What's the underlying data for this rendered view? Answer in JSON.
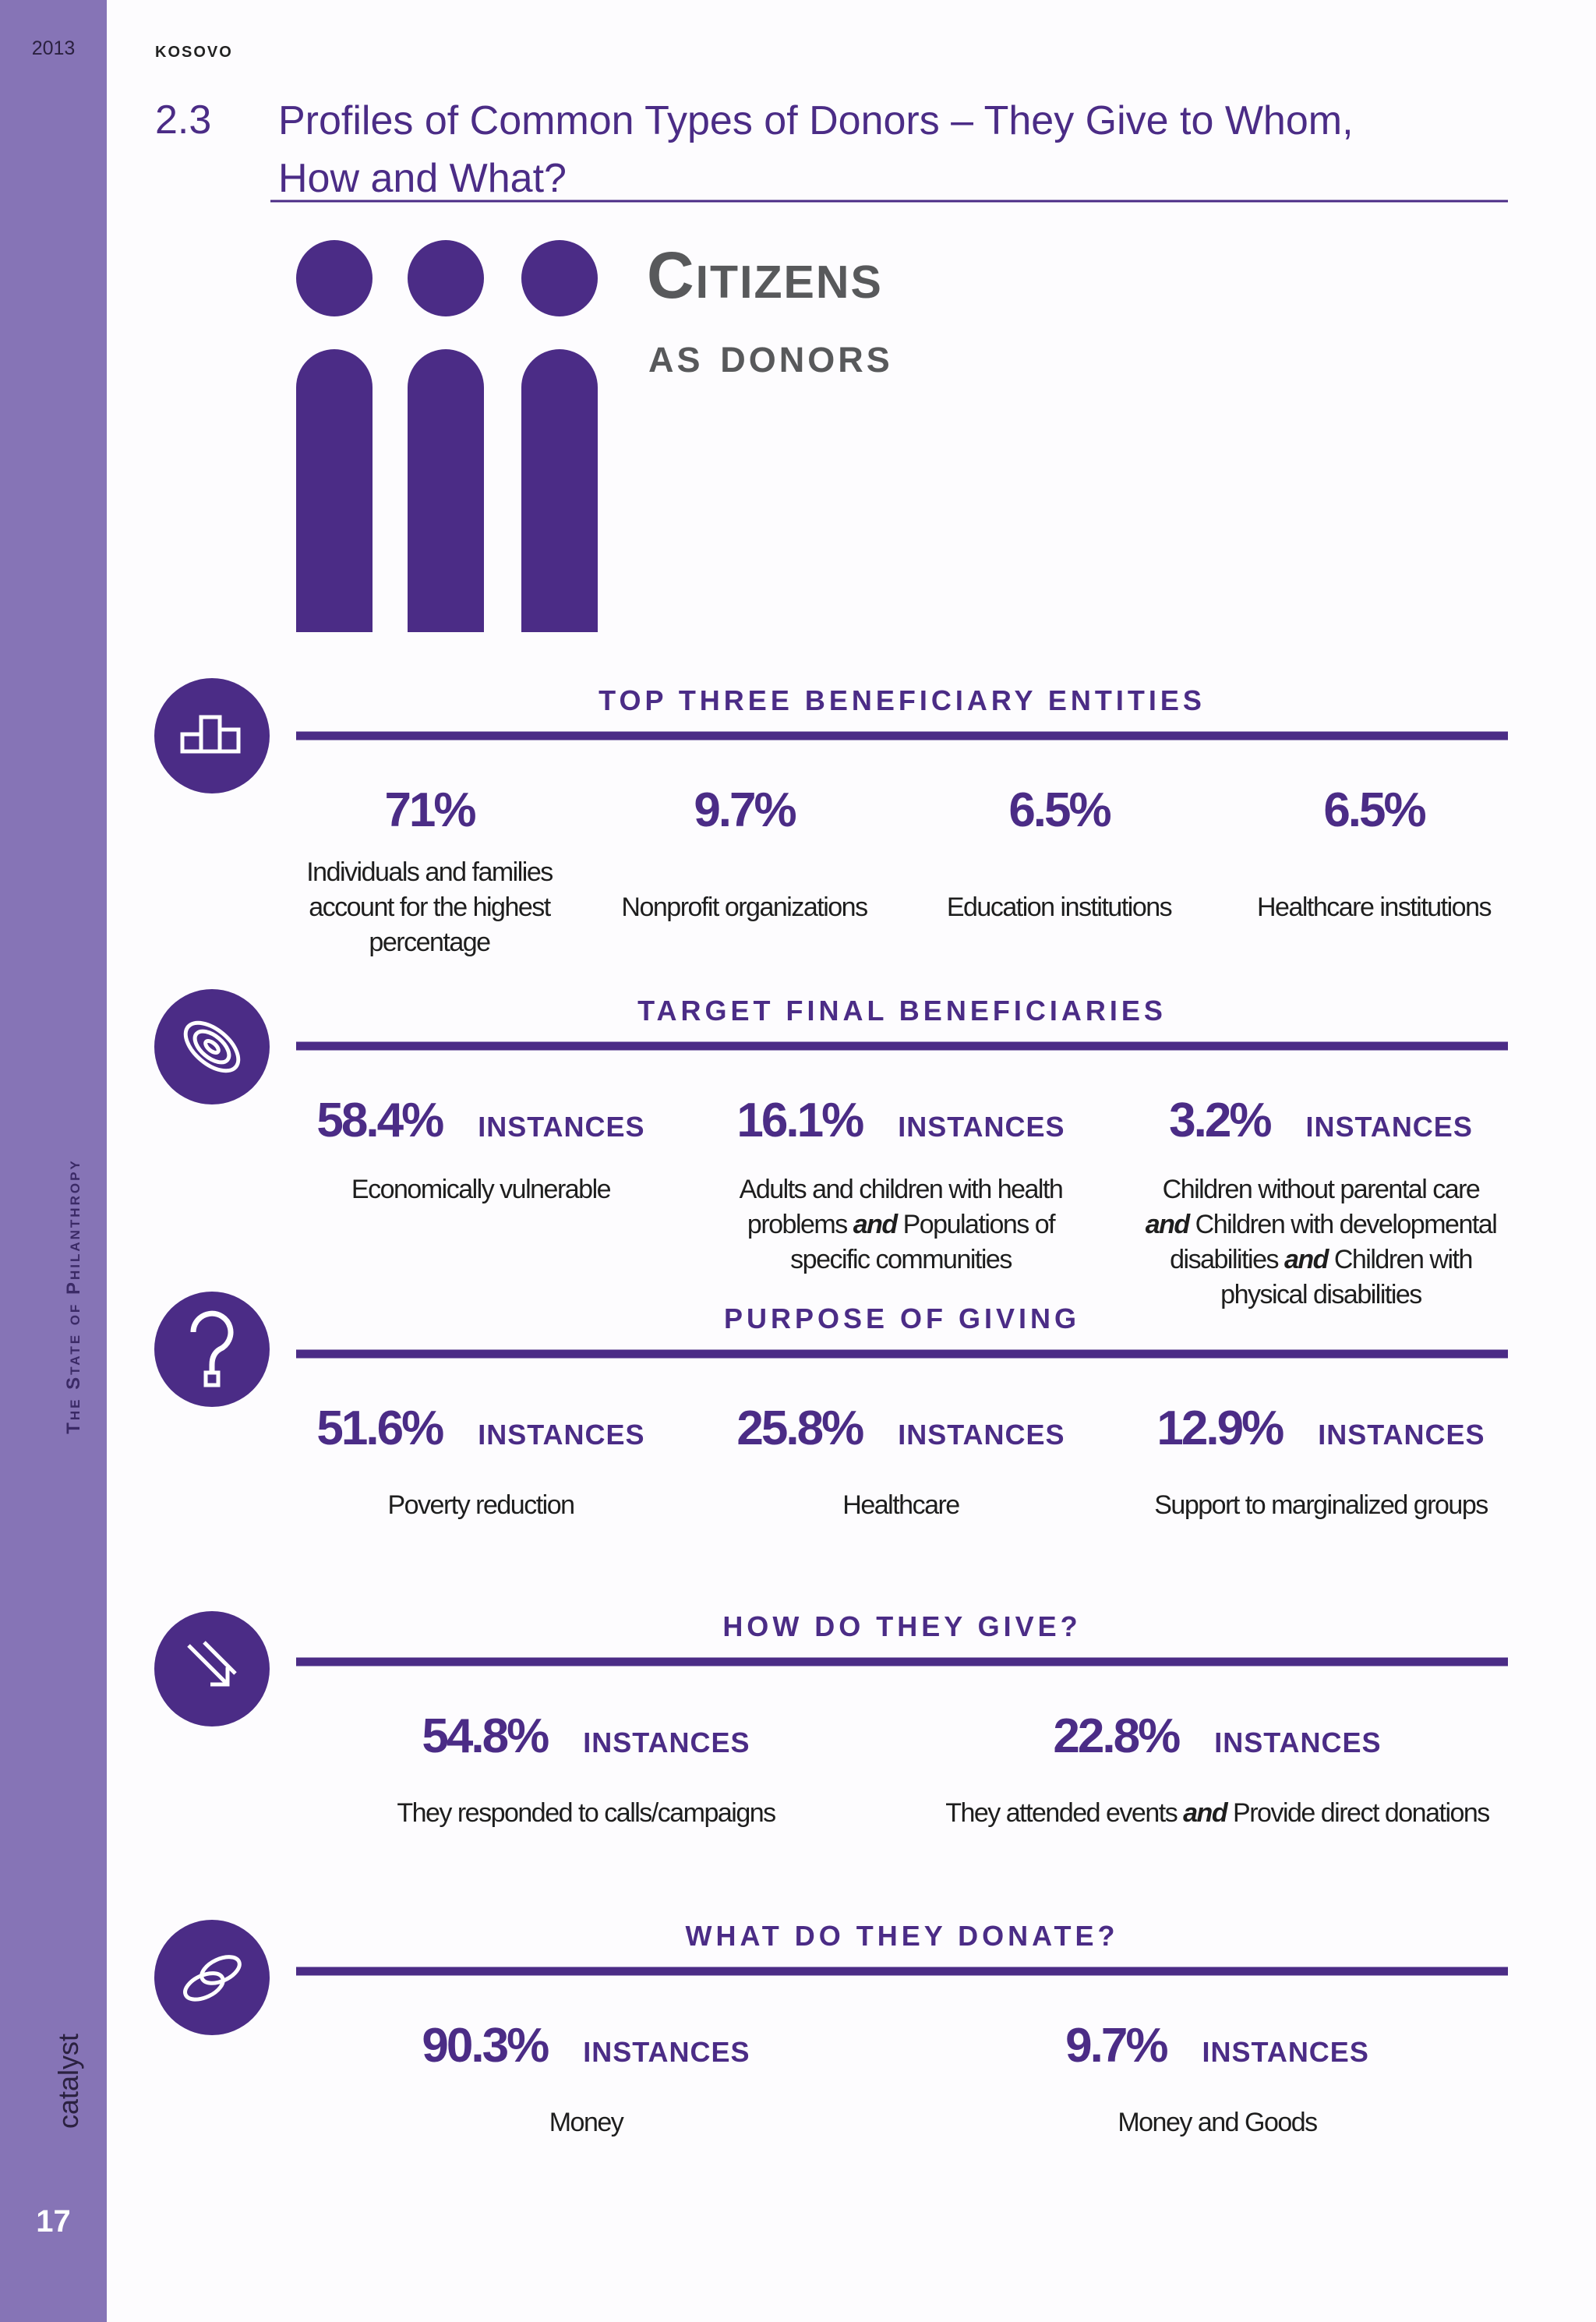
{
  "header": {
    "year": "2013",
    "country": "KOSOVO",
    "section_number": "2.3",
    "title": "Profiles of Common Types of Donors – They Give to Whom, How and What?"
  },
  "sidebar": {
    "publication": "The State of Philanthropy",
    "brand": "catalyst",
    "page_number": "17"
  },
  "hero": {
    "title": "Citizens",
    "subtitle": "as donors"
  },
  "sections": [
    {
      "heading": "TOP THREE BENEFICIARY ENTITIES",
      "items": [
        {
          "value": "71%",
          "description": [
            "Individuals and families account for the highest percentage"
          ]
        },
        {
          "value": "9.7%",
          "description": [
            "Nonprofit organizations"
          ]
        },
        {
          "value": "6.5%",
          "description": [
            "Education institutions"
          ]
        },
        {
          "value": "6.5%",
          "description": [
            "Healthcare institutions"
          ]
        }
      ]
    },
    {
      "heading": "TARGET FINAL BENEFICIARIES",
      "items": [
        {
          "value": "58.4%",
          "unit": "INSTANCES",
          "description": [
            "Economically vulnerable"
          ]
        },
        {
          "value": "16.1%",
          "unit": "INSTANCES",
          "description": [
            "Adults and children with health problems ",
            "and",
            " Populations of specific communities"
          ]
        },
        {
          "value": "3.2%",
          "unit": "INSTANCES",
          "description": [
            "Children without parental care ",
            "and",
            " Children with developmental disabilities ",
            "and",
            " Children with physical disabilities"
          ]
        }
      ]
    },
    {
      "heading": "PURPOSE OF GIVING",
      "items": [
        {
          "value": "51.6%",
          "unit": "INSTANCES",
          "description": [
            "Poverty reduction"
          ]
        },
        {
          "value": "25.8%",
          "unit": "INSTANCES",
          "description": [
            "Healthcare"
          ]
        },
        {
          "value": "12.9%",
          "unit": "INSTANCES",
          "description": [
            "Support to marginalized groups"
          ]
        }
      ]
    },
    {
      "heading": "HOW DO THEY GIVE?",
      "items": [
        {
          "value": "54.8%",
          "unit": "INSTANCES",
          "description": [
            "They responded to calls/campaigns"
          ]
        },
        {
          "value": "22.8%",
          "unit": "INSTANCES",
          "description": [
            "They attended events ",
            "and",
            " Provide direct donations"
          ]
        }
      ]
    },
    {
      "heading": "WHAT DO THEY DONATE?",
      "items": [
        {
          "value": "90.3%",
          "unit": "INSTANCES",
          "description": [
            "Money"
          ]
        },
        {
          "value": "9.7%",
          "unit": "INSTANCES",
          "description": [
            "Money and Goods"
          ]
        }
      ]
    }
  ]
}
